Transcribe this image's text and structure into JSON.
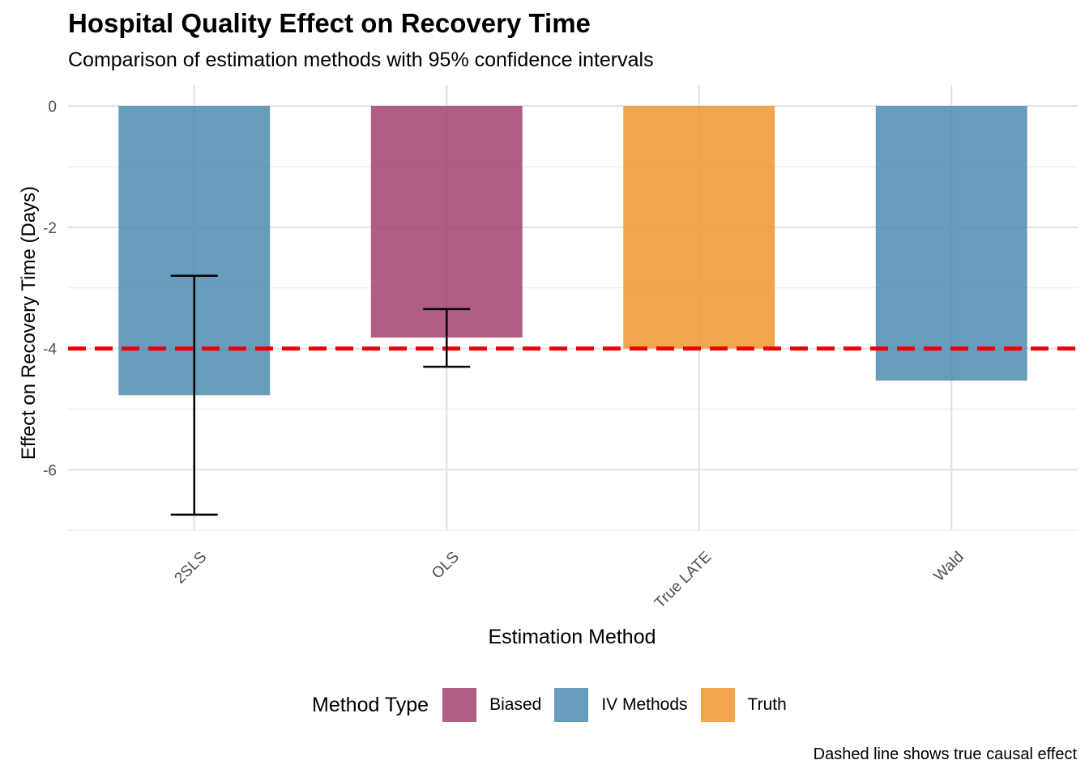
{
  "title": "Hospital Quality Effect on Recovery Time",
  "subtitle": "Comparison of estimation methods with 95% confidence intervals",
  "caption": "Dashed line shows true causal effect",
  "chart_data": {
    "type": "bar",
    "categories": [
      "2SLS",
      "OLS",
      "True LATE",
      "Wald"
    ],
    "values": [
      -4.77,
      -3.82,
      -4.0,
      -4.53
    ],
    "method_type": [
      "IV Methods",
      "Biased",
      "Truth",
      "IV Methods"
    ],
    "ci_lower": [
      -6.74,
      -4.3,
      null,
      null
    ],
    "ci_upper": [
      -2.8,
      -3.35,
      null,
      null
    ],
    "reference_line": {
      "y": -4,
      "color": "#ee0000",
      "style": "dashed"
    },
    "xlabel": "Estimation Method",
    "ylabel": "Effect on Recovery Time (Days)",
    "ylim": [
      -7,
      0.35
    ],
    "yticks": [
      0,
      -2,
      -4,
      -6
    ],
    "grid": true,
    "legend": {
      "title": "Method Type",
      "position": "bottom",
      "entries": [
        {
          "label": "Biased",
          "color": "#A3426F"
        },
        {
          "label": "IV Methods",
          "color": "#4D8BAF"
        },
        {
          "label": "Truth",
          "color": "#EF952E"
        }
      ]
    }
  }
}
